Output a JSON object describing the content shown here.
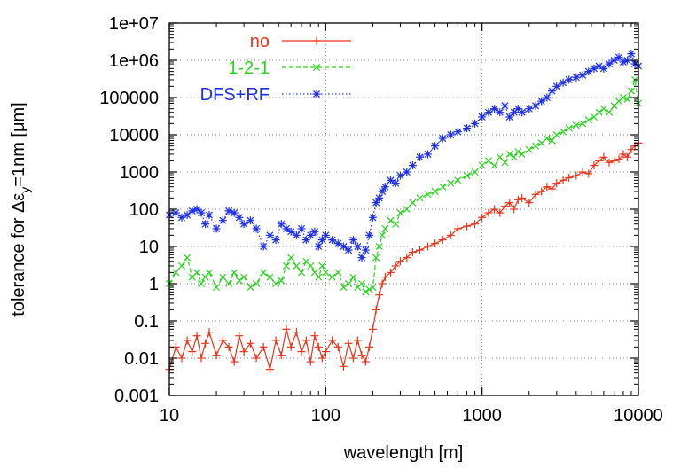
{
  "chart_data": {
    "type": "line",
    "xlabel": "wavelength [m]",
    "ylabel": "tolerance for Δε",
    "ylabel_sub": "y",
    "ylabel_suffix": "=1nm [μm]",
    "x_scale": "log",
    "y_scale": "log",
    "xlim": [
      10,
      10000
    ],
    "ylim": [
      0.001,
      10000000
    ],
    "grid": true,
    "legend_position": "top-left",
    "x_ticks": [
      {
        "value": 10,
        "label": "10"
      },
      {
        "value": 100,
        "label": "100"
      },
      {
        "value": 1000,
        "label": "1000"
      },
      {
        "value": 10000,
        "label": "10000"
      }
    ],
    "y_ticks": [
      {
        "value": 0.001,
        "label": "0.001"
      },
      {
        "value": 0.01,
        "label": "0.01"
      },
      {
        "value": 0.1,
        "label": "0.1"
      },
      {
        "value": 1,
        "label": "1"
      },
      {
        "value": 10,
        "label": "10"
      },
      {
        "value": 100,
        "label": "100"
      },
      {
        "value": 1000,
        "label": "1000"
      },
      {
        "value": 10000,
        "label": "10000"
      },
      {
        "value": 100000,
        "label": "100000"
      },
      {
        "value": 1000000,
        "label": "1e+06"
      },
      {
        "value": 10000000,
        "label": "1e+07"
      }
    ],
    "series": [
      {
        "name": "no",
        "color": "#e8351b",
        "line_style": "solid",
        "marker": "plus",
        "x": [
          10,
          11,
          12,
          13,
          14,
          15,
          16,
          17,
          18,
          20,
          22,
          24,
          26,
          28,
          30,
          33,
          36,
          40,
          44,
          48,
          52,
          56,
          60,
          65,
          70,
          75,
          80,
          85,
          90,
          95,
          100,
          110,
          120,
          130,
          140,
          150,
          160,
          170,
          180,
          190,
          200,
          210,
          220,
          230,
          240,
          260,
          280,
          300,
          330,
          360,
          400,
          450,
          500,
          560,
          630,
          700,
          800,
          900,
          1000,
          1100,
          1200,
          1300,
          1400,
          1500,
          1600,
          1700,
          1800,
          2000,
          2200,
          2400,
          2600,
          2800,
          3000,
          3300,
          3600,
          4000,
          4400,
          4800,
          5200,
          5600,
          6000,
          6500,
          7000,
          7500,
          8000,
          8500,
          9000,
          9500,
          10000
        ],
        "y": [
          0.005,
          0.02,
          0.01,
          0.03,
          0.015,
          0.04,
          0.01,
          0.025,
          0.05,
          0.012,
          0.03,
          0.02,
          0.008,
          0.04,
          0.015,
          0.025,
          0.01,
          0.02,
          0.005,
          0.03,
          0.012,
          0.06,
          0.02,
          0.05,
          0.015,
          0.03,
          0.008,
          0.04,
          0.02,
          0.01,
          0.015,
          0.03,
          0.02,
          0.006,
          0.025,
          0.01,
          0.03,
          0.012,
          0.008,
          0.02,
          0.06,
          0.2,
          0.5,
          1,
          1.5,
          2,
          3,
          4,
          5,
          7,
          8,
          10,
          12,
          15,
          20,
          30,
          35,
          40,
          60,
          80,
          100,
          80,
          120,
          150,
          100,
          180,
          200,
          150,
          250,
          300,
          400,
          350,
          500,
          600,
          700,
          800,
          1000,
          900,
          1500,
          2000,
          2500,
          1800,
          2000,
          2200,
          3000,
          2500,
          4000,
          5000,
          6000
        ]
      },
      {
        "name": "1-2-1",
        "color": "#2ad41e",
        "line_style": "dashed",
        "marker": "cross",
        "x": [
          10,
          11,
          12,
          13,
          14,
          15,
          16,
          17,
          18,
          20,
          22,
          24,
          26,
          28,
          30,
          33,
          36,
          40,
          44,
          48,
          52,
          56,
          60,
          65,
          70,
          75,
          80,
          85,
          90,
          95,
          100,
          110,
          120,
          130,
          140,
          150,
          160,
          170,
          180,
          190,
          200,
          210,
          220,
          230,
          240,
          260,
          280,
          300,
          330,
          360,
          400,
          450,
          500,
          560,
          630,
          700,
          800,
          900,
          1000,
          1100,
          1200,
          1300,
          1400,
          1500,
          1600,
          1700,
          1800,
          2000,
          2200,
          2400,
          2600,
          2800,
          3000,
          3300,
          3600,
          4000,
          4400,
          4800,
          5200,
          5600,
          6000,
          6500,
          7000,
          7500,
          8000,
          8500,
          9000,
          9500,
          10000
        ],
        "y": [
          1,
          2,
          3,
          5,
          1.5,
          2,
          1,
          1.5,
          2,
          0.8,
          1.5,
          1,
          2,
          1.2,
          1.5,
          0.8,
          1,
          2,
          1.5,
          1,
          1.2,
          3,
          5,
          3,
          2,
          4,
          3,
          2,
          1.5,
          3,
          2,
          1.5,
          2,
          0.8,
          1,
          1.5,
          0.8,
          1,
          0.6,
          0.7,
          0.8,
          5,
          10,
          20,
          30,
          50,
          40,
          80,
          100,
          150,
          200,
          250,
          300,
          400,
          500,
          600,
          800,
          1000,
          1500,
          2000,
          1500,
          2500,
          1800,
          3000,
          2500,
          3500,
          3000,
          4000,
          5000,
          6000,
          8000,
          7000,
          10000,
          12000,
          15000,
          18000,
          20000,
          25000,
          30000,
          40000,
          50000,
          40000,
          60000,
          80000,
          100000,
          90000,
          150000,
          300000,
          70000
        ]
      },
      {
        "name": "DFS+RF",
        "color": "#1c2ee6",
        "line_style": "dotted",
        "marker": "star",
        "x": [
          10,
          11,
          12,
          13,
          14,
          15,
          16,
          17,
          18,
          20,
          22,
          24,
          26,
          28,
          30,
          33,
          36,
          40,
          44,
          48,
          52,
          56,
          60,
          65,
          70,
          75,
          80,
          85,
          90,
          95,
          100,
          110,
          120,
          130,
          140,
          150,
          160,
          170,
          180,
          190,
          200,
          210,
          220,
          230,
          240,
          260,
          280,
          300,
          330,
          360,
          400,
          450,
          500,
          560,
          630,
          700,
          800,
          900,
          1000,
          1100,
          1200,
          1300,
          1400,
          1500,
          1600,
          1700,
          1800,
          2000,
          2200,
          2400,
          2600,
          2800,
          3000,
          3300,
          3600,
          4000,
          4400,
          4800,
          5200,
          5600,
          6000,
          6500,
          7000,
          7500,
          8000,
          8500,
          9000,
          9500,
          10000
        ],
        "y": [
          70,
          80,
          60,
          70,
          90,
          100,
          80,
          40,
          70,
          30,
          50,
          90,
          80,
          60,
          40,
          50,
          30,
          10,
          20,
          15,
          40,
          30,
          25,
          20,
          30,
          15,
          20,
          25,
          10,
          15,
          20,
          15,
          12,
          10,
          8,
          15,
          10,
          5,
          8,
          20,
          60,
          150,
          200,
          300,
          400,
          600,
          500,
          800,
          1000,
          1500,
          2500,
          3000,
          5000,
          8000,
          10000,
          12000,
          15000,
          20000,
          30000,
          40000,
          50000,
          40000,
          60000,
          30000,
          40000,
          50000,
          40000,
          50000,
          60000,
          80000,
          100000,
          150000,
          200000,
          250000,
          300000,
          350000,
          400000,
          500000,
          600000,
          700000,
          600000,
          800000,
          1000000,
          1200000,
          900000,
          1000000,
          1500000,
          800000,
          700000
        ]
      }
    ]
  }
}
